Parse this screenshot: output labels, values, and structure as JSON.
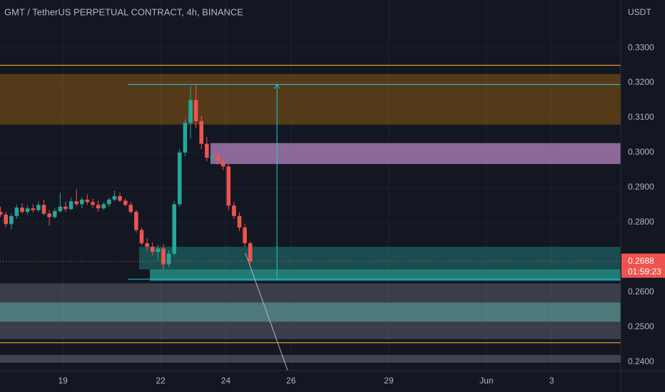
{
  "chart_data": {
    "type": "candlestick",
    "title": "GMT / TetherUS PERPETUAL CONTRACT, 4h, BINANCE",
    "y_unit": "USDT",
    "countdown": "01:59:23",
    "xlim": [
      17.07,
      36.12
    ],
    "xticks": [
      19,
      22,
      24,
      26,
      29,
      {
        "value": 32,
        "label": "Jun"
      },
      {
        "value": 34,
        "label": "3"
      }
    ],
    "ylim": [
      0.2375,
      0.3437
    ],
    "yticks": [
      {
        "value": 0.33,
        "label": "0.3300"
      },
      {
        "value": 0.32,
        "label": "0.3200"
      },
      {
        "value": 0.31,
        "label": "0.3100"
      },
      {
        "value": 0.3,
        "label": "0.3000"
      },
      {
        "value": 0.29,
        "label": "0.2900"
      },
      {
        "value": 0.28,
        "label": "0.2800"
      },
      {
        "value": 0.26,
        "label": "0.2600"
      },
      {
        "value": 0.25,
        "label": "0.2500"
      },
      {
        "value": 0.24,
        "label": "0.2400"
      }
    ],
    "grid": true,
    "up_color": "#26a69a",
    "down_color": "#ef5350",
    "x": [
      17.083,
      17.25,
      17.417,
      17.583,
      17.75,
      17.917,
      18.083,
      18.25,
      18.417,
      18.583,
      18.75,
      18.917,
      19.083,
      19.25,
      19.417,
      19.583,
      19.75,
      19.917,
      20.083,
      20.25,
      20.417,
      20.583,
      20.75,
      20.917,
      21.083,
      21.25,
      21.417,
      21.583,
      21.75,
      21.917,
      22.083,
      22.25,
      22.417,
      22.583,
      22.75,
      22.917,
      23.083,
      23.25,
      23.417,
      23.583,
      23.75,
      23.917,
      24.083,
      24.25,
      24.417,
      24.583,
      24.75
    ],
    "open": [
      0.283,
      0.2822,
      0.2795,
      0.2818,
      0.2842,
      0.283,
      0.284,
      0.2835,
      0.285,
      0.2825,
      0.2815,
      0.2832,
      0.2845,
      0.2838,
      0.286,
      0.2852,
      0.2865,
      0.2858,
      0.285,
      0.284,
      0.2852,
      0.2865,
      0.2875,
      0.2862,
      0.285,
      0.283,
      0.2778,
      0.274,
      0.273,
      0.2715,
      0.2725,
      0.268,
      0.271,
      0.2852,
      0.3,
      0.3085,
      0.315,
      0.309,
      0.3025,
      0.2985,
      0.299,
      0.2975,
      0.296,
      0.2848,
      0.2818,
      0.2785,
      0.274
    ],
    "high": [
      0.2845,
      0.283,
      0.2825,
      0.285,
      0.2855,
      0.2848,
      0.2852,
      0.286,
      0.2865,
      0.2835,
      0.284,
      0.2885,
      0.286,
      0.287,
      0.2895,
      0.2872,
      0.288,
      0.2868,
      0.2862,
      0.2858,
      0.287,
      0.289,
      0.2885,
      0.2868,
      0.2858,
      0.2835,
      0.2785,
      0.2755,
      0.2742,
      0.2735,
      0.2738,
      0.272,
      0.286,
      0.301,
      0.3095,
      0.319,
      0.3195,
      0.3105,
      0.3045,
      0.3,
      0.3005,
      0.2985,
      0.2968,
      0.286,
      0.2828,
      0.2795,
      0.2745
    ],
    "low": [
      0.2815,
      0.2785,
      0.278,
      0.281,
      0.2825,
      0.2822,
      0.2828,
      0.283,
      0.282,
      0.279,
      0.281,
      0.2828,
      0.283,
      0.2835,
      0.2845,
      0.284,
      0.285,
      0.2842,
      0.283,
      0.2835,
      0.2845,
      0.286,
      0.2858,
      0.2845,
      0.2825,
      0.277,
      0.2735,
      0.2718,
      0.2705,
      0.269,
      0.2665,
      0.2672,
      0.2705,
      0.2845,
      0.299,
      0.304,
      0.307,
      0.301,
      0.2975,
      0.297,
      0.2965,
      0.295,
      0.2835,
      0.281,
      0.2775,
      0.273,
      0.268
    ],
    "close": [
      0.2822,
      0.2795,
      0.2818,
      0.2842,
      0.283,
      0.284,
      0.2835,
      0.285,
      0.2825,
      0.2815,
      0.2832,
      0.2845,
      0.2838,
      0.286,
      0.2852,
      0.2865,
      0.2858,
      0.285,
      0.284,
      0.2852,
      0.2865,
      0.2875,
      0.2862,
      0.285,
      0.283,
      0.2778,
      0.274,
      0.273,
      0.2715,
      0.2725,
      0.268,
      0.271,
      0.2852,
      0.3,
      0.3085,
      0.315,
      0.309,
      0.3025,
      0.2985,
      0.299,
      0.2975,
      0.296,
      0.2848,
      0.2818,
      0.2785,
      0.274,
      0.2688
    ],
    "zones": [
      {
        "from": 0.3225,
        "to": 0.308,
        "start": 17.07,
        "color": "rgba(255,152,0,0.28)"
      },
      {
        "from": 0.3027,
        "to": 0.2967,
        "start": 23.53,
        "color": "rgba(206,147,216,0.65)"
      },
      {
        "from": 0.273,
        "to": 0.2665,
        "start": 21.34,
        "color": "rgba(38,166,154,0.38)"
      },
      {
        "from": 0.2665,
        "to": 0.2632,
        "start": 21.67,
        "color": "rgba(38,166,154,0.7)"
      },
      {
        "from": 0.2625,
        "to": 0.257,
        "start": 17.07,
        "color": "rgba(120,123,134,0.4)"
      },
      {
        "from": 0.257,
        "to": 0.2515,
        "start": 17.07,
        "color": "rgba(128,203,196,0.55)"
      },
      {
        "from": 0.2515,
        "to": 0.2465,
        "start": 17.07,
        "color": "rgba(120,123,134,0.4)"
      },
      {
        "from": 0.242,
        "to": 0.2398,
        "start": 17.07,
        "color": "rgba(120,123,134,0.45)"
      }
    ],
    "levels": [
      0.325,
      0.2455
    ],
    "level_color": "#f5a623",
    "measure": {
      "start": 21.0,
      "top": 0.3195,
      "bottom": 0.2637,
      "arrow_x": 25.57,
      "color": "#26c6da"
    },
    "trend_line": {
      "x": [
        24.6,
        25.9
      ],
      "y": [
        0.2712,
        0.2375
      ],
      "color": "#b2b5be"
    }
  }
}
